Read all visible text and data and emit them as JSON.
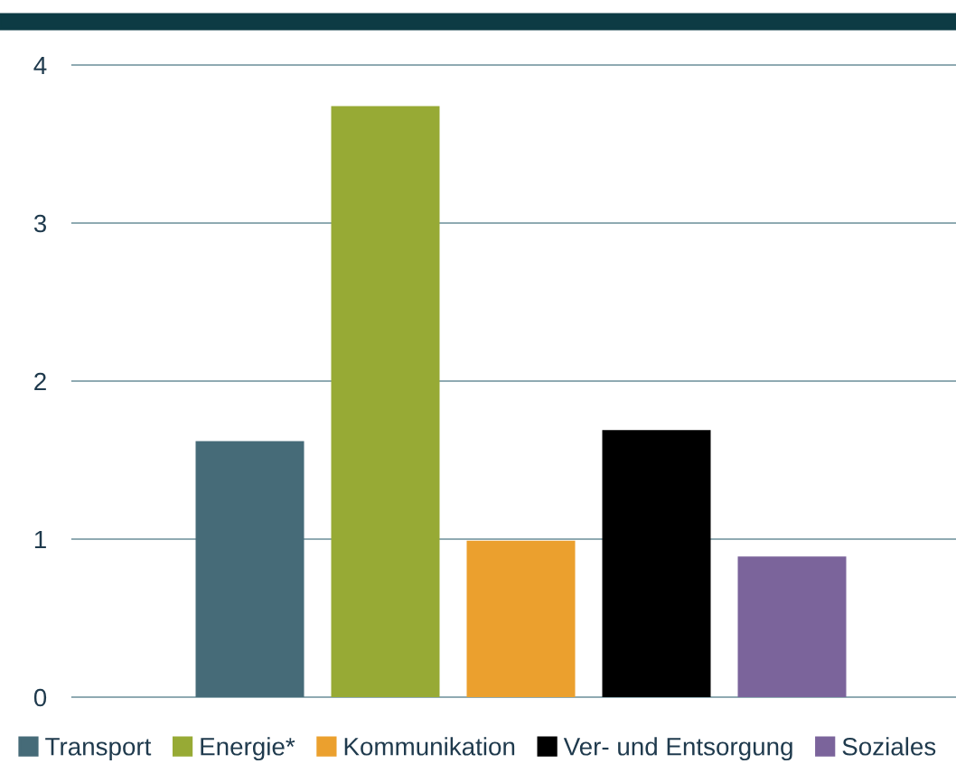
{
  "chart_data": {
    "type": "bar",
    "categories": [
      null,
      null,
      null,
      null,
      null
    ],
    "series": [
      {
        "name": "Transport",
        "color": "#466b78",
        "values": [
          1.62,
          null,
          null,
          null,
          null
        ]
      },
      {
        "name": "Energie*",
        "color": "#97aa35",
        "values": [
          null,
          3.74,
          null,
          null,
          null
        ]
      },
      {
        "name": "Kommunikation",
        "color": "#eba02e",
        "values": [
          null,
          null,
          0.99,
          null,
          null
        ]
      },
      {
        "name": "Ver- und Entsorgung",
        "color": "#000000",
        "values": [
          null,
          null,
          null,
          1.69,
          null
        ]
      },
      {
        "name": "Soziales",
        "color": "#7b649b",
        "values": [
          null,
          null,
          null,
          null,
          0.89
        ]
      }
    ],
    "ylim": [
      0,
      4
    ],
    "yticks": [
      0,
      1,
      2,
      3,
      4
    ],
    "grid": "y",
    "legend": "bottom"
  }
}
